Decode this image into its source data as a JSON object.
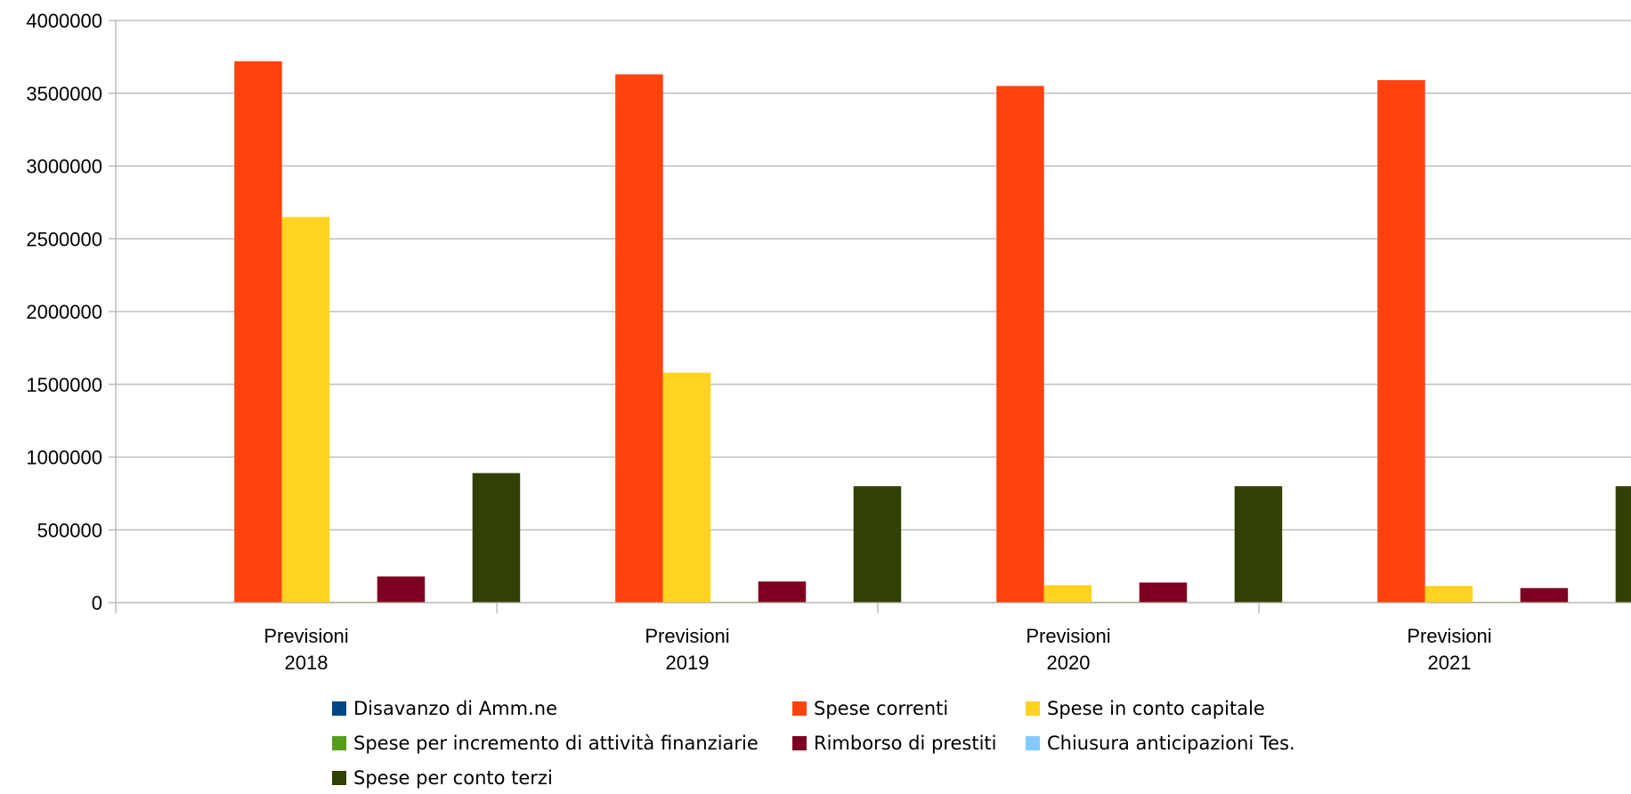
{
  "chart_data": {
    "type": "bar",
    "categories": [
      [
        "Previsioni",
        "2018"
      ],
      [
        "Previsioni",
        "2019"
      ],
      [
        "Previsioni",
        "2020"
      ],
      [
        "Previsioni",
        "2021"
      ]
    ],
    "series": [
      {
        "name": "Disavanzo di Amm.ne",
        "color": "#004586",
        "values": [
          0,
          0,
          0,
          0
        ]
      },
      {
        "name": "Spese correnti",
        "color": "#FF420E",
        "values": [
          3720000,
          3630000,
          3550000,
          3590000
        ]
      },
      {
        "name": "Spese in conto capitale",
        "color": "#FFD320",
        "values": [
          2650000,
          1580000,
          120000,
          115000
        ]
      },
      {
        "name": "Spese per incremento di attività finanziarie",
        "color": "#579D1C",
        "values": [
          5000,
          5000,
          5000,
          5000
        ]
      },
      {
        "name": "Rimborso di prestiti",
        "color": "#7E0021",
        "values": [
          180000,
          145000,
          138000,
          100000
        ]
      },
      {
        "name": "Chiusura anticipazioni Tes.",
        "color": "#83CAFF",
        "values": [
          0,
          0,
          0,
          0
        ]
      },
      {
        "name": "Spese per conto terzi",
        "color": "#314004",
        "values": [
          890000,
          800000,
          800000,
          800000
        ]
      }
    ],
    "ylim": [
      0,
      4000000
    ],
    "yticks": [
      0,
      500000,
      1000000,
      1500000,
      2000000,
      2500000,
      3000000,
      3500000,
      4000000
    ],
    "grid": true,
    "legend_position": "bottom",
    "title": "",
    "xlabel": "",
    "ylabel": ""
  }
}
